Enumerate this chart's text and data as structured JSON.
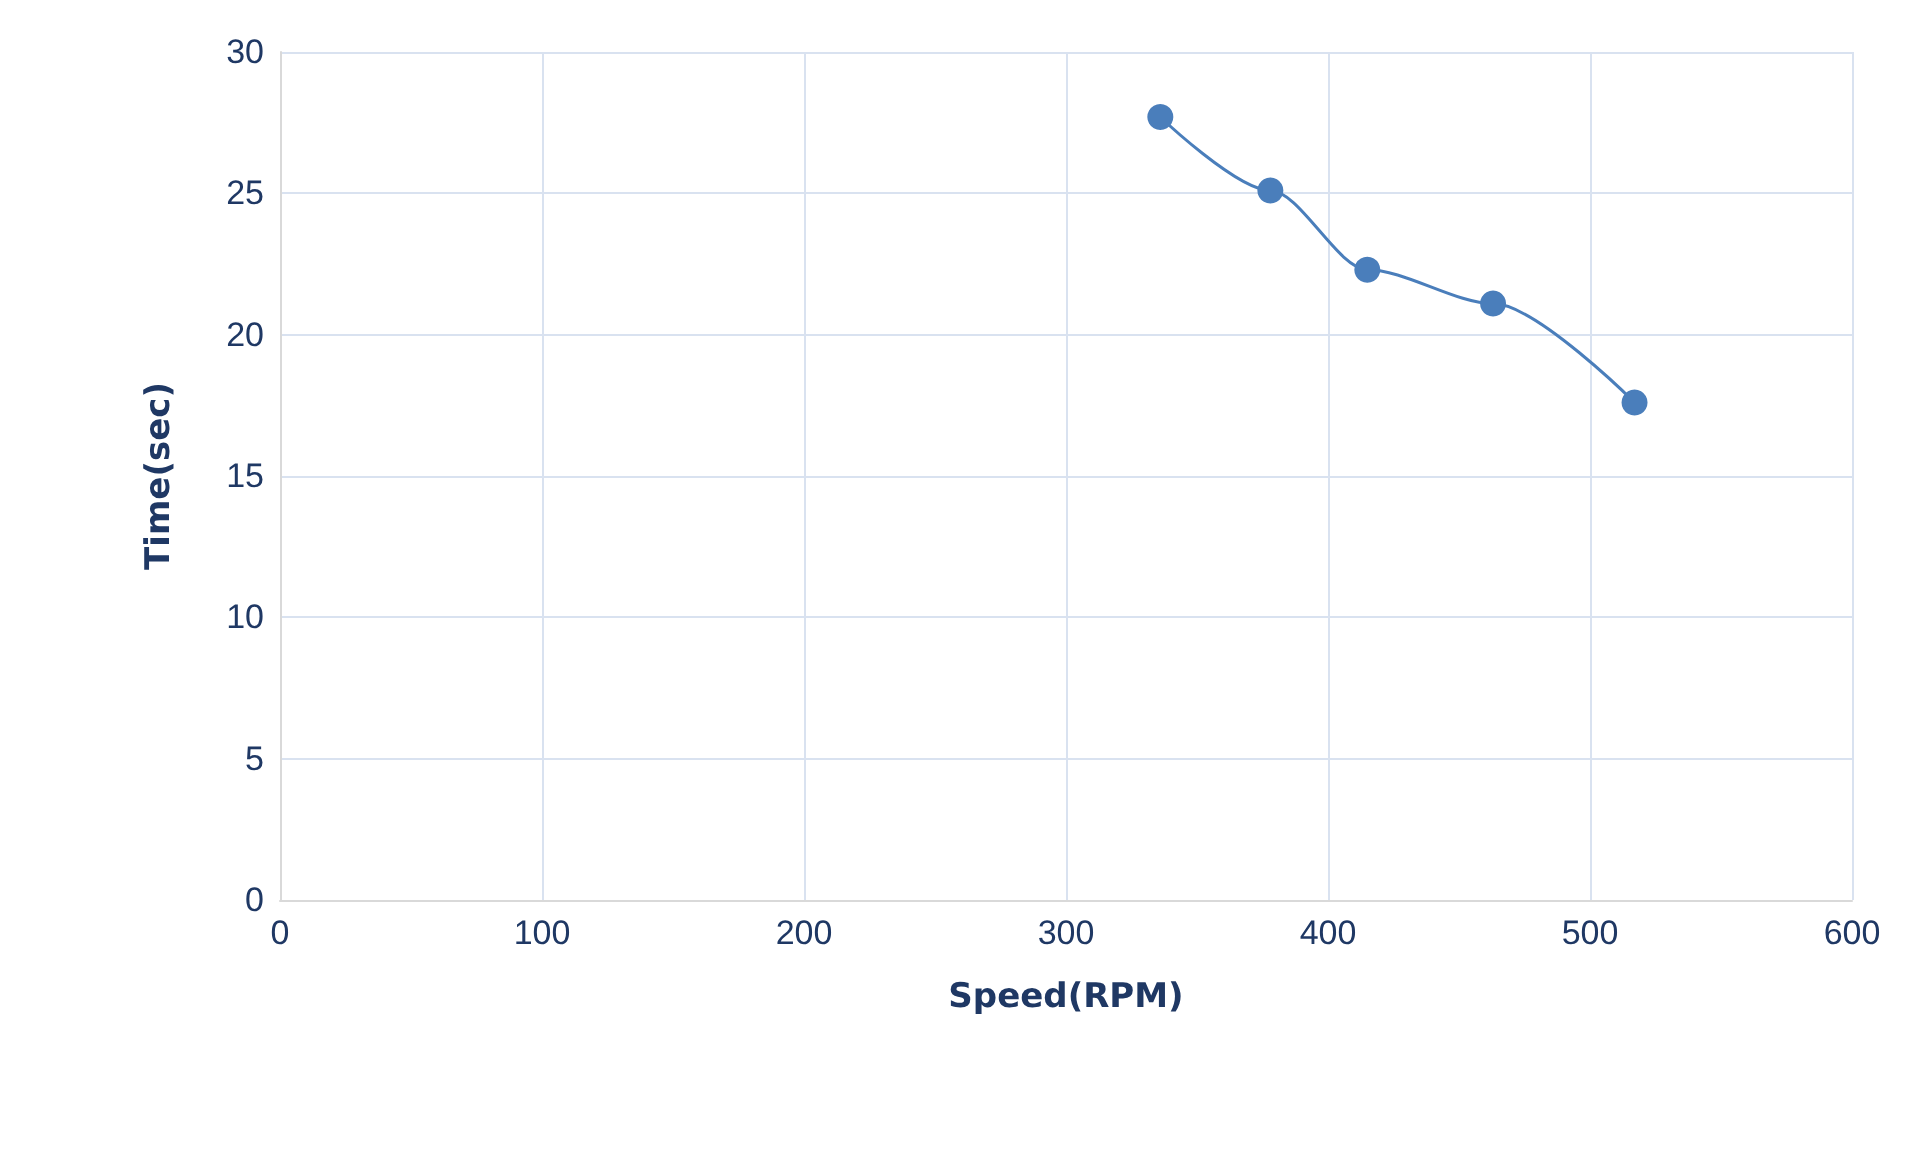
{
  "chart_data": {
    "type": "line",
    "xlabel": "Speed(RPM)",
    "ylabel": "Time(sec)",
    "x": [
      336,
      378,
      415,
      463,
      517
    ],
    "series": [
      {
        "color": "#4a7ebb",
        "values": [
          27.7,
          25.1,
          22.3,
          21.1,
          17.6
        ]
      }
    ],
    "xlim": [
      0,
      600
    ],
    "xticks": [
      0,
      100,
      200,
      300,
      400,
      500,
      600
    ],
    "ylim": [
      0,
      30
    ],
    "yticks": [
      0,
      5,
      10,
      15,
      20,
      25,
      30
    ],
    "grid": true,
    "marker": "circle",
    "line_style": "solid"
  }
}
